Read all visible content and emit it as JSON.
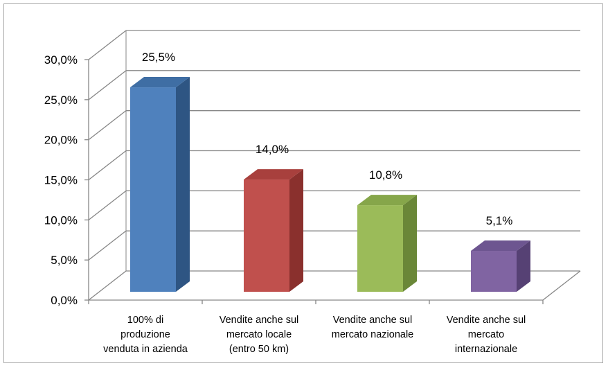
{
  "chart_data": {
    "type": "bar",
    "title": "",
    "xlabel": "",
    "ylabel": "",
    "ylim": [
      0,
      30
    ],
    "yticks": [
      "0,0%",
      "5,0%",
      "10,0%",
      "15,0%",
      "20,0%",
      "25,0%",
      "30,0%"
    ],
    "categories": [
      [
        "100% di",
        "produzione",
        "venduta in azienda"
      ],
      [
        "Vendite anche sul",
        "mercato locale",
        "(entro 50 km)"
      ],
      [
        "Vendite anche sul",
        "mercato nazionale"
      ],
      [
        "Vendite anche sul",
        "mercato",
        "internazionale"
      ]
    ],
    "values": [
      25.5,
      14.0,
      10.8,
      5.1
    ],
    "data_labels": [
      "25,5%",
      "14,0%",
      "10,8%",
      "5,1%"
    ],
    "colors": [
      {
        "front": "#4f81bd",
        "side": "#2e5583",
        "top": "#3f6ea4"
      },
      {
        "front": "#c0504d",
        "side": "#8a302d",
        "top": "#a8403d"
      },
      {
        "front": "#9bbb59",
        "side": "#6a8738",
        "top": "#86a64a"
      },
      {
        "front": "#8064a2",
        "side": "#564174",
        "top": "#6d5590"
      }
    ],
    "grid": true,
    "legend": "none",
    "style": "3d-column"
  }
}
